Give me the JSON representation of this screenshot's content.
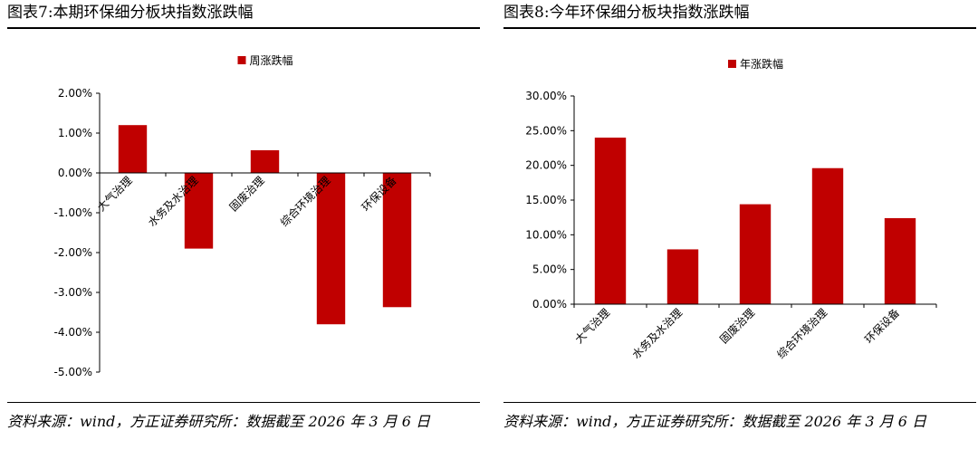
{
  "panels": [
    {
      "figure_title": "图表7:本期环保细分板块指数涨跌幅",
      "source_note": "资料来源：wind，方正证券研究所：数据截至 2026 年 3 月 6 日"
    },
    {
      "figure_title": "图表8:今年环保细分板块指数涨跌幅",
      "source_note": "资料来源：wind，方正证券研究所：数据截至 2026 年 3 月 6 日"
    }
  ],
  "chart_data": [
    {
      "type": "bar",
      "title": "",
      "xlabel": "",
      "ylabel": "",
      "legend_position": "top-center",
      "bar_color": "#C00000",
      "categories": [
        "大气治理",
        "水务及水治理",
        "固废治理",
        "综合环境治理",
        "环保设备"
      ],
      "series": [
        {
          "name": "周涨跌幅",
          "values": [
            1.2,
            -1.9,
            0.57,
            -3.8,
            -3.37
          ]
        }
      ],
      "ylim": [
        -5,
        2
      ],
      "yticks": [
        2,
        1,
        0,
        -1,
        -2,
        -3,
        -4,
        -5
      ],
      "ytick_labels": [
        "2.00%",
        "1.00%",
        "0.00%",
        "-1.00%",
        "-2.00%",
        "-3.00%",
        "-4.00%",
        "-5.00%"
      ]
    },
    {
      "type": "bar",
      "title": "",
      "xlabel": "",
      "ylabel": "",
      "legend_position": "top-center",
      "bar_color": "#C00000",
      "categories": [
        "大气治理",
        "水务及水治理",
        "固废治理",
        "综合环境治理",
        "环保设备"
      ],
      "series": [
        {
          "name": "年涨跌幅",
          "values": [
            24.0,
            7.9,
            14.4,
            19.6,
            12.4
          ]
        }
      ],
      "ylim": [
        0,
        30
      ],
      "yticks": [
        30,
        25,
        20,
        15,
        10,
        5,
        0
      ],
      "ytick_labels": [
        "30.00%",
        "25.00%",
        "20.00%",
        "15.00%",
        "10.00%",
        "5.00%",
        "0.00%"
      ]
    }
  ]
}
